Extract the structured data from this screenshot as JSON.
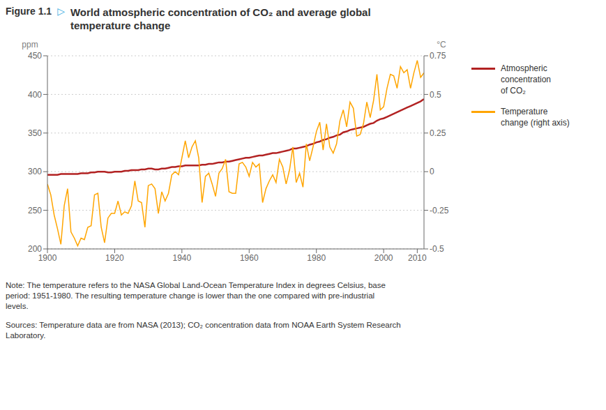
{
  "chart_data": {
    "type": "line",
    "title": "World atmospheric concentration of CO₂ and average global\ntemperature change",
    "annotations": [
      "Figure 1.1",
      "▷",
      "Note: The temperature refers to the NASA Global Land-Ocean Temperature Index in degrees Celsius, base\nperiod: 1951-1980. The resulting temperature change is lower than the one compared with pre-industrial\nlevels.",
      "Sources: Temperature data are from NASA (2013); CO₂ concentration data from NOAA Earth System Research\nLaboratory."
    ],
    "ylabel": "ppm",
    "y2label": "°C",
    "x": [
      1900,
      1901,
      1902,
      1903,
      1904,
      1905,
      1906,
      1907,
      1908,
      1909,
      1910,
      1911,
      1912,
      1913,
      1914,
      1915,
      1916,
      1917,
      1918,
      1919,
      1920,
      1921,
      1922,
      1923,
      1924,
      1925,
      1926,
      1927,
      1928,
      1929,
      1930,
      1931,
      1932,
      1933,
      1934,
      1935,
      1936,
      1937,
      1938,
      1939,
      1940,
      1941,
      1942,
      1943,
      1944,
      1945,
      1946,
      1947,
      1948,
      1949,
      1950,
      1951,
      1952,
      1953,
      1954,
      1955,
      1956,
      1957,
      1958,
      1959,
      1960,
      1961,
      1962,
      1963,
      1964,
      1965,
      1966,
      1967,
      1968,
      1969,
      1970,
      1971,
      1972,
      1973,
      1974,
      1975,
      1976,
      1977,
      1978,
      1979,
      1980,
      1981,
      1982,
      1983,
      1984,
      1985,
      1986,
      1987,
      1988,
      1989,
      1990,
      1991,
      1992,
      1993,
      1994,
      1995,
      1996,
      1997,
      1998,
      1999,
      2000,
      2001,
      2002,
      2003,
      2004,
      2005,
      2006,
      2007,
      2008,
      2009,
      2010,
      2011,
      2012
    ],
    "xlim": [
      1900,
      2012
    ],
    "xticks": [
      1900,
      1920,
      1940,
      1960,
      1980,
      2000,
      2010
    ],
    "ylim": [
      200,
      450
    ],
    "yticks": [
      200,
      250,
      300,
      350,
      400,
      450
    ],
    "y2lim": [
      -0.5,
      0.75
    ],
    "y2ticks": [
      -0.5,
      -0.25,
      0,
      0.25,
      0.5,
      0.75
    ],
    "grid": true,
    "legend": "right",
    "series": [
      {
        "name": "Atmospheric\nconcentration\nof CO₂",
        "color": "#b22222",
        "values": [
          296,
          296,
          296,
          296,
          297,
          297,
          297,
          297,
          297,
          297,
          298,
          298,
          298,
          299,
          299,
          300,
          300,
          300,
          299,
          299,
          300,
          300,
          300,
          301,
          301,
          302,
          302,
          302,
          303,
          303,
          304,
          304,
          303,
          303,
          304,
          304,
          305,
          306,
          306,
          307,
          307,
          308,
          308,
          308,
          308,
          308,
          309,
          309,
          310,
          310,
          311,
          312,
          312,
          313,
          313,
          314,
          315,
          316,
          317,
          318,
          318,
          319,
          320,
          321,
          321,
          322,
          323,
          324,
          324,
          325,
          326,
          327,
          328,
          330,
          330,
          331,
          332,
          333,
          335,
          336,
          338,
          339,
          341,
          342,
          344,
          345,
          347,
          348,
          351,
          352,
          354,
          355,
          356,
          357,
          358,
          360,
          362,
          363,
          366,
          368,
          369,
          371,
          373,
          375,
          377,
          379,
          381,
          383,
          385,
          387,
          389,
          391,
          394
        ]
      },
      {
        "name": "Temperature\nchange (right axis)",
        "color": "#FFA500",
        "axis": "y2",
        "values": [
          -0.08,
          -0.15,
          -0.28,
          -0.37,
          -0.47,
          -0.22,
          -0.11,
          -0.39,
          -0.43,
          -0.48,
          -0.43,
          -0.44,
          -0.36,
          -0.35,
          -0.15,
          -0.14,
          -0.36,
          -0.46,
          -0.3,
          -0.27,
          -0.27,
          -0.19,
          -0.28,
          -0.26,
          -0.27,
          -0.22,
          -0.06,
          -0.19,
          -0.2,
          -0.36,
          -0.09,
          -0.08,
          -0.11,
          -0.27,
          -0.13,
          -0.19,
          -0.14,
          -0.02,
          -0.0,
          -0.02,
          0.09,
          0.2,
          0.09,
          0.16,
          0.2,
          0.09,
          -0.2,
          -0.03,
          -0.01,
          -0.08,
          -0.16,
          -0.01,
          0.02,
          0.08,
          -0.13,
          -0.14,
          -0.14,
          0.05,
          0.06,
          0.03,
          -0.03,
          0.06,
          0.03,
          0.05,
          -0.2,
          -0.11,
          -0.06,
          -0.02,
          -0.07,
          0.08,
          0.03,
          -0.08,
          0.01,
          0.16,
          -0.07,
          -0.01,
          -0.1,
          0.18,
          0.07,
          0.16,
          0.26,
          0.32,
          0.14,
          0.31,
          0.16,
          0.12,
          0.18,
          0.33,
          0.4,
          0.29,
          0.45,
          0.41,
          0.23,
          0.24,
          0.31,
          0.45,
          0.35,
          0.46,
          0.63,
          0.4,
          0.42,
          0.54,
          0.63,
          0.62,
          0.54,
          0.68,
          0.64,
          0.66,
          0.54,
          0.64,
          0.72,
          0.61,
          0.64
        ]
      }
    ]
  }
}
